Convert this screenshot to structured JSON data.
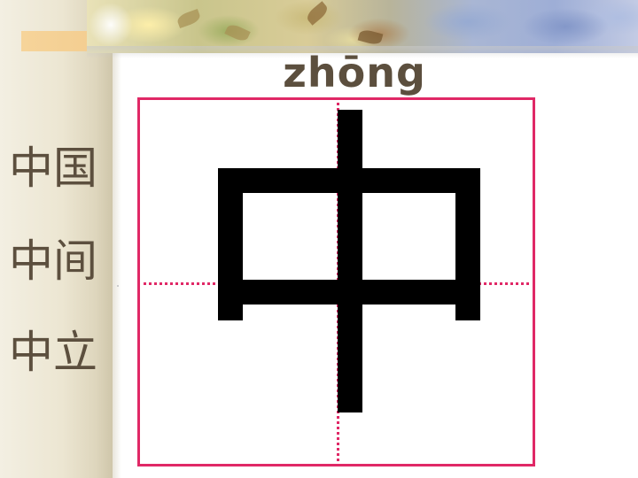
{
  "lesson": {
    "pinyin": "zhōng",
    "character": "中",
    "words": [
      "中国",
      "中间",
      "中立"
    ]
  },
  "colors": {
    "grid_line": "#e02866",
    "text": "#5c4f3e",
    "character": "#000000",
    "left_strip": "#ece6d2"
  },
  "decor": {
    "banner": "floral-banner-image"
  }
}
